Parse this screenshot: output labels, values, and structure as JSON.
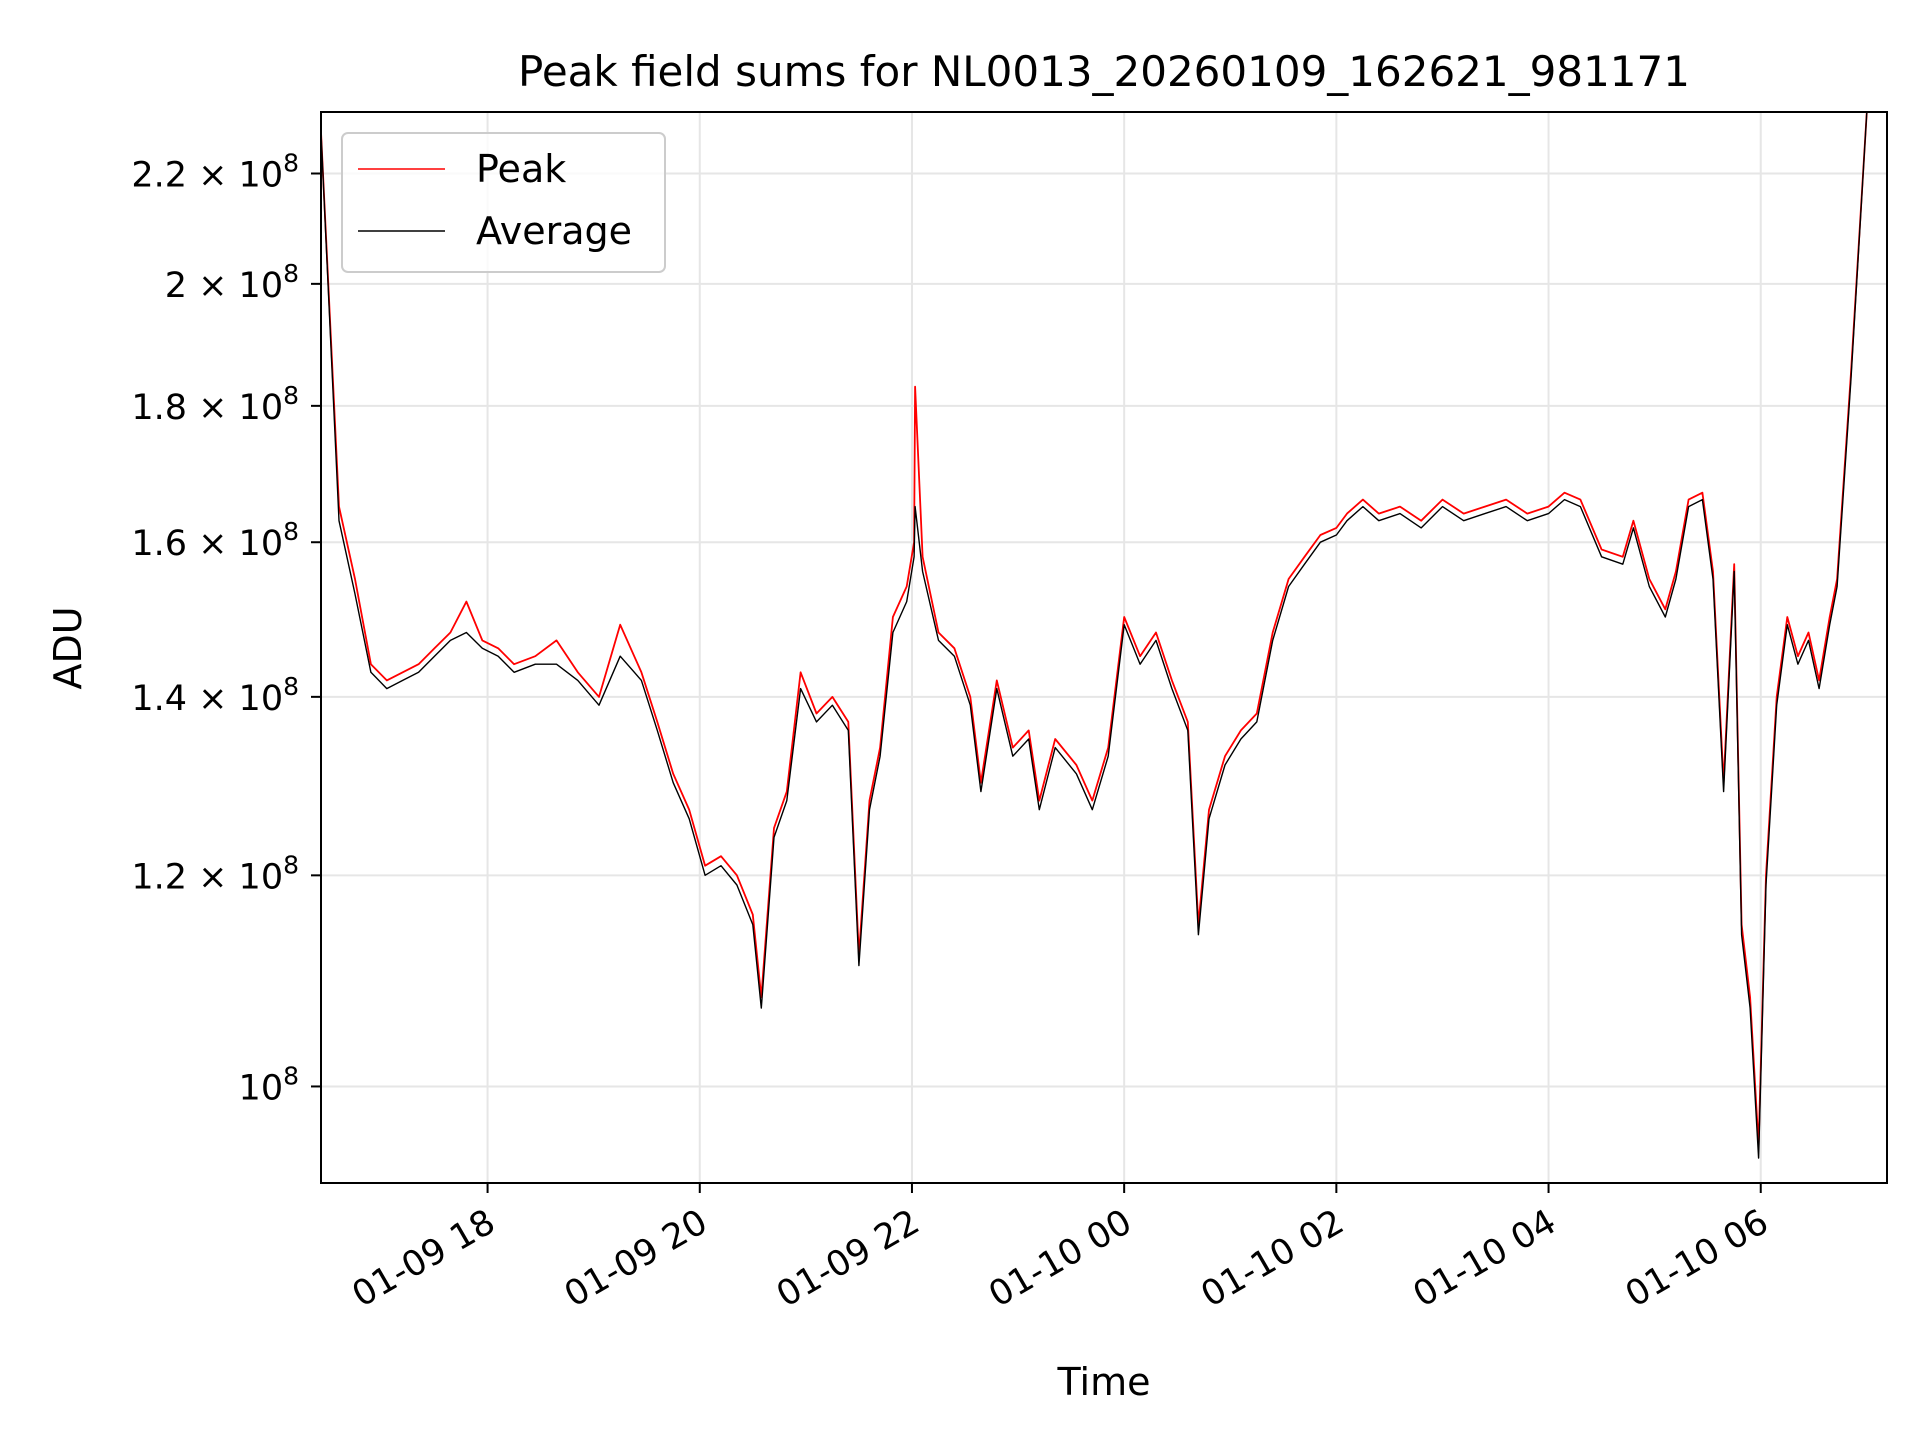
{
  "chart_data": {
    "type": "line",
    "title": "Peak field sums for NL0013_20260109_162621_981171",
    "xlabel": "Time",
    "ylabel": "ADU",
    "yscale": "log",
    "ylim": [
      92000000,
      232000000
    ],
    "xlim_hours": [
      16.43,
      31.19
    ],
    "grid": true,
    "legend_position": "upper-left",
    "x_ticks": [
      {
        "hour": 18,
        "label": "01-09 18"
      },
      {
        "hour": 20,
        "label": "01-09 20"
      },
      {
        "hour": 22,
        "label": "01-09 22"
      },
      {
        "hour": 24,
        "label": "01-10 00"
      },
      {
        "hour": 26,
        "label": "01-10 02"
      },
      {
        "hour": 28,
        "label": "01-10 04"
      },
      {
        "hour": 30,
        "label": "01-10 06"
      }
    ],
    "y_ticks": [
      {
        "value": 100000000,
        "mantissa": "",
        "exponent": "8"
      },
      {
        "value": 120000000,
        "mantissa": "1.2",
        "exponent": "8"
      },
      {
        "value": 140000000,
        "mantissa": "1.4",
        "exponent": "8"
      },
      {
        "value": 160000000,
        "mantissa": "1.6",
        "exponent": "8"
      },
      {
        "value": 180000000,
        "mantissa": "1.8",
        "exponent": "8"
      },
      {
        "value": 200000000,
        "mantissa": "2",
        "exponent": "8"
      },
      {
        "value": 220000000,
        "mantissa": "2.2",
        "exponent": "8"
      }
    ],
    "series": [
      {
        "name": "Peak",
        "color": "#ff0000",
        "points": [
          [
            16.43,
            228
          ],
          [
            16.6,
            165
          ],
          [
            16.75,
            155
          ],
          [
            16.9,
            144
          ],
          [
            17.05,
            142
          ],
          [
            17.2,
            143
          ],
          [
            17.35,
            144
          ],
          [
            17.5,
            146
          ],
          [
            17.65,
            148
          ],
          [
            17.8,
            152
          ],
          [
            17.95,
            147
          ],
          [
            18.1,
            146
          ],
          [
            18.25,
            144
          ],
          [
            18.45,
            145
          ],
          [
            18.65,
            147
          ],
          [
            18.85,
            143
          ],
          [
            19.05,
            140
          ],
          [
            19.25,
            149
          ],
          [
            19.45,
            143
          ],
          [
            19.6,
            137
          ],
          [
            19.75,
            131
          ],
          [
            19.9,
            127
          ],
          [
            20.05,
            121
          ],
          [
            20.2,
            122
          ],
          [
            20.35,
            120
          ],
          [
            20.5,
            116
          ],
          [
            20.58,
            108
          ],
          [
            20.7,
            125
          ],
          [
            20.82,
            129
          ],
          [
            20.95,
            143
          ],
          [
            21.1,
            138
          ],
          [
            21.25,
            140
          ],
          [
            21.4,
            137
          ],
          [
            21.5,
            112
          ],
          [
            21.6,
            128
          ],
          [
            21.7,
            134
          ],
          [
            21.82,
            150
          ],
          [
            21.95,
            154
          ],
          [
            22.02,
            160
          ],
          [
            22.03,
            183
          ],
          [
            22.1,
            158
          ],
          [
            22.25,
            148
          ],
          [
            22.4,
            146
          ],
          [
            22.55,
            140
          ],
          [
            22.65,
            130
          ],
          [
            22.8,
            142
          ],
          [
            22.95,
            134
          ],
          [
            23.1,
            136
          ],
          [
            23.2,
            128
          ],
          [
            23.35,
            135
          ],
          [
            23.55,
            132
          ],
          [
            23.7,
            128
          ],
          [
            23.85,
            134
          ],
          [
            24.0,
            150
          ],
          [
            24.15,
            145
          ],
          [
            24.3,
            148
          ],
          [
            24.45,
            142
          ],
          [
            24.6,
            137
          ],
          [
            24.7,
            115
          ],
          [
            24.8,
            127
          ],
          [
            24.95,
            133
          ],
          [
            25.1,
            136
          ],
          [
            25.25,
            138
          ],
          [
            25.4,
            148
          ],
          [
            25.55,
            155
          ],
          [
            25.7,
            158
          ],
          [
            25.85,
            161
          ],
          [
            26.0,
            162
          ],
          [
            26.1,
            164
          ],
          [
            26.25,
            166
          ],
          [
            26.4,
            164
          ],
          [
            26.6,
            165
          ],
          [
            26.8,
            163
          ],
          [
            27.0,
            166
          ],
          [
            27.2,
            164
          ],
          [
            27.4,
            165
          ],
          [
            27.6,
            166
          ],
          [
            27.8,
            164
          ],
          [
            28.0,
            165
          ],
          [
            28.15,
            167
          ],
          [
            28.3,
            166
          ],
          [
            28.5,
            159
          ],
          [
            28.7,
            158
          ],
          [
            28.8,
            163
          ],
          [
            28.95,
            155
          ],
          [
            29.1,
            151
          ],
          [
            29.2,
            156
          ],
          [
            29.32,
            166
          ],
          [
            29.45,
            167
          ],
          [
            29.55,
            156
          ],
          [
            29.65,
            130
          ],
          [
            29.75,
            157
          ],
          [
            29.82,
            115
          ],
          [
            29.9,
            108
          ],
          [
            29.98,
            95
          ],
          [
            30.05,
            120
          ],
          [
            30.15,
            140
          ],
          [
            30.25,
            150
          ],
          [
            30.35,
            145
          ],
          [
            30.45,
            148
          ],
          [
            30.55,
            142
          ],
          [
            30.65,
            150
          ],
          [
            30.72,
            155
          ],
          [
            30.85,
            185
          ],
          [
            31.0,
            232
          ]
        ]
      },
      {
        "name": "Average",
        "color": "#000000",
        "points": [
          [
            16.43,
            228
          ],
          [
            16.6,
            163
          ],
          [
            16.75,
            153
          ],
          [
            16.9,
            143
          ],
          [
            17.05,
            141
          ],
          [
            17.2,
            142
          ],
          [
            17.35,
            143
          ],
          [
            17.5,
            145
          ],
          [
            17.65,
            147
          ],
          [
            17.8,
            148
          ],
          [
            17.95,
            146
          ],
          [
            18.1,
            145
          ],
          [
            18.25,
            143
          ],
          [
            18.45,
            144
          ],
          [
            18.65,
            144
          ],
          [
            18.85,
            142
          ],
          [
            19.05,
            139
          ],
          [
            19.25,
            145
          ],
          [
            19.45,
            142
          ],
          [
            19.6,
            136
          ],
          [
            19.75,
            130
          ],
          [
            19.9,
            126
          ],
          [
            20.05,
            120
          ],
          [
            20.2,
            121
          ],
          [
            20.35,
            119
          ],
          [
            20.5,
            115
          ],
          [
            20.58,
            107
          ],
          [
            20.7,
            124
          ],
          [
            20.82,
            128
          ],
          [
            20.95,
            141
          ],
          [
            21.1,
            137
          ],
          [
            21.25,
            139
          ],
          [
            21.4,
            136
          ],
          [
            21.5,
            111
          ],
          [
            21.6,
            127
          ],
          [
            21.7,
            133
          ],
          [
            21.82,
            148
          ],
          [
            21.95,
            152
          ],
          [
            22.02,
            158
          ],
          [
            22.03,
            165
          ],
          [
            22.1,
            156
          ],
          [
            22.25,
            147
          ],
          [
            22.4,
            145
          ],
          [
            22.55,
            139
          ],
          [
            22.65,
            129
          ],
          [
            22.8,
            141
          ],
          [
            22.95,
            133
          ],
          [
            23.1,
            135
          ],
          [
            23.2,
            127
          ],
          [
            23.35,
            134
          ],
          [
            23.55,
            131
          ],
          [
            23.7,
            127
          ],
          [
            23.85,
            133
          ],
          [
            24.0,
            149
          ],
          [
            24.15,
            144
          ],
          [
            24.3,
            147
          ],
          [
            24.45,
            141
          ],
          [
            24.6,
            136
          ],
          [
            24.7,
            114
          ],
          [
            24.8,
            126
          ],
          [
            24.95,
            132
          ],
          [
            25.1,
            135
          ],
          [
            25.25,
            137
          ],
          [
            25.4,
            147
          ],
          [
            25.55,
            154
          ],
          [
            25.7,
            157
          ],
          [
            25.85,
            160
          ],
          [
            26.0,
            161
          ],
          [
            26.1,
            163
          ],
          [
            26.25,
            165
          ],
          [
            26.4,
            163
          ],
          [
            26.6,
            164
          ],
          [
            26.8,
            162
          ],
          [
            27.0,
            165
          ],
          [
            27.2,
            163
          ],
          [
            27.4,
            164
          ],
          [
            27.6,
            165
          ],
          [
            27.8,
            163
          ],
          [
            28.0,
            164
          ],
          [
            28.15,
            166
          ],
          [
            28.3,
            165
          ],
          [
            28.5,
            158
          ],
          [
            28.7,
            157
          ],
          [
            28.8,
            162
          ],
          [
            28.95,
            154
          ],
          [
            29.1,
            150
          ],
          [
            29.2,
            155
          ],
          [
            29.32,
            165
          ],
          [
            29.45,
            166
          ],
          [
            29.55,
            155
          ],
          [
            29.65,
            129
          ],
          [
            29.75,
            156
          ],
          [
            29.82,
            114
          ],
          [
            29.9,
            107
          ],
          [
            29.98,
            94
          ],
          [
            30.05,
            119
          ],
          [
            30.15,
            139
          ],
          [
            30.25,
            149
          ],
          [
            30.35,
            144
          ],
          [
            30.45,
            147
          ],
          [
            30.55,
            141
          ],
          [
            30.65,
            149
          ],
          [
            30.72,
            154
          ],
          [
            30.85,
            184
          ],
          [
            31.0,
            232
          ]
        ]
      }
    ]
  }
}
